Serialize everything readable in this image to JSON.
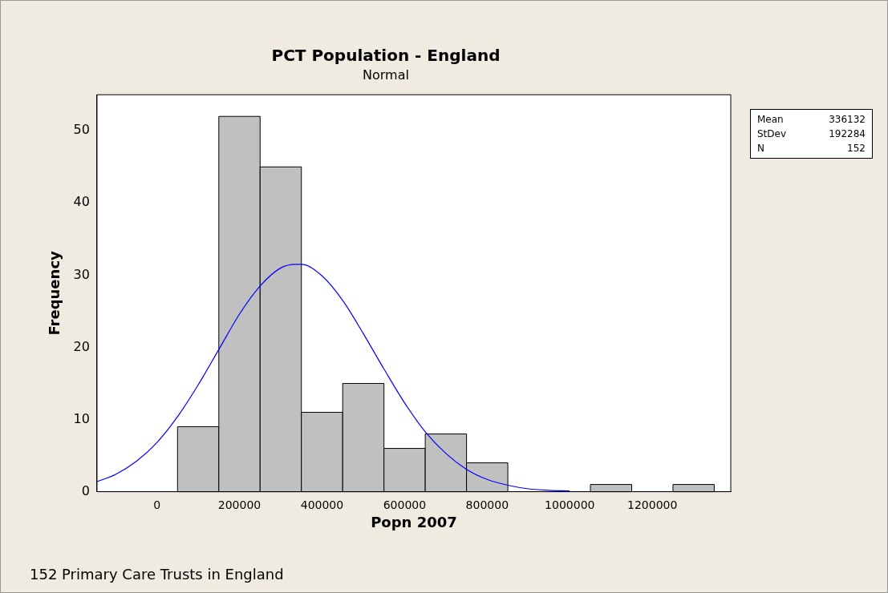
{
  "chart_data": {
    "type": "histogram",
    "title": "PCT Population - England",
    "subtitle": "Normal",
    "xlabel": "Popn 2007",
    "ylabel": "Frequency",
    "bins": [
      50000,
      150000,
      250000,
      350000,
      450000,
      550000,
      650000,
      750000,
      850000,
      950000,
      1050000,
      1150000,
      1250000,
      1350000
    ],
    "values": [
      9,
      52,
      45,
      11,
      15,
      6,
      8,
      4,
      0,
      0,
      1,
      0,
      1
    ],
    "color": "#c0c0c0",
    "series": [
      {
        "type": "line",
        "color": "#0000ff",
        "x": [
          -145000,
          -100000,
          -50000,
          0,
          50000,
          100000,
          150000,
          200000,
          250000,
          300000,
          336132,
          350000,
          400000,
          450000,
          500000,
          550000,
          600000,
          650000,
          700000,
          750000,
          800000,
          850000,
          900000,
          950000,
          1000000
        ],
        "values": [
          1.4,
          2.4,
          4.2,
          6.8,
          10.4,
          14.8,
          19.7,
          24.6,
          28.5,
          31.0,
          31.5,
          31.5,
          29.9,
          26.5,
          21.9,
          17.0,
          12.3,
          8.3,
          5.3,
          3.1,
          1.7,
          0.9,
          0.4,
          0.2,
          0.1
        ]
      }
    ],
    "xlim": [
      -145000,
      1390000
    ],
    "ylim": [
      0,
      55
    ],
    "xticks": [
      0,
      200000,
      400000,
      600000,
      800000,
      1000000,
      1200000
    ],
    "yticks": [
      0,
      10,
      20,
      30,
      40,
      50
    ],
    "grid": false,
    "legend": false,
    "marker": "none",
    "line_style": "solid",
    "annotations": [
      "Mean 336132",
      "StDev 192284",
      "N 152",
      "152 Primary Care Trusts in England"
    ]
  }
}
